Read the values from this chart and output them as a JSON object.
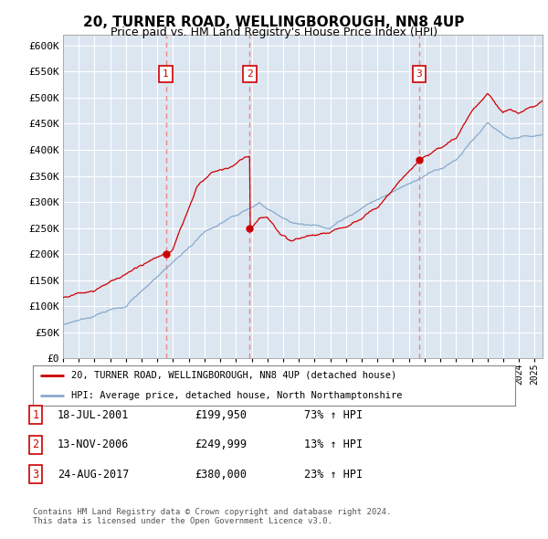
{
  "title": "20, TURNER ROAD, WELLINGBOROUGH, NN8 4UP",
  "subtitle": "Price paid vs. HM Land Registry's House Price Index (HPI)",
  "bg_color": "#dce6f1",
  "plot_bg_color": "#dce6f1",
  "outer_bg_color": "#ffffff",
  "red_line_color": "#cc0000",
  "blue_line_color": "#88aacc",
  "ylim": [
    0,
    620000
  ],
  "yticks": [
    0,
    50000,
    100000,
    150000,
    200000,
    250000,
    300000,
    350000,
    400000,
    450000,
    500000,
    550000,
    600000
  ],
  "ytick_labels": [
    "£0",
    "£50K",
    "£100K",
    "£150K",
    "£200K",
    "£250K",
    "£300K",
    "£350K",
    "£400K",
    "£450K",
    "£500K",
    "£550K",
    "£600K"
  ],
  "xlim_start": 1995.0,
  "xlim_end": 2025.5,
  "sale_dates": [
    2001.54,
    2006.87,
    2017.65
  ],
  "sale_prices": [
    199950,
    249999,
    380000
  ],
  "sale_labels": [
    "1",
    "2",
    "3"
  ],
  "legend_line1": "20, TURNER ROAD, WELLINGBOROUGH, NN8 4UP (detached house)",
  "legend_line2": "HPI: Average price, detached house, North Northamptonshire",
  "table_data": [
    [
      "1",
      "18-JUL-2001",
      "£199,950",
      "73% ↑ HPI"
    ],
    [
      "2",
      "13-NOV-2006",
      "£249,999",
      "13% ↑ HPI"
    ],
    [
      "3",
      "24-AUG-2017",
      "£380,000",
      "23% ↑ HPI"
    ]
  ],
  "footnote": "Contains HM Land Registry data © Crown copyright and database right 2024.\nThis data is licensed under the Open Government Licence v3.0.",
  "grid_color": "#ffffff",
  "dashed_line_color": "#e88888"
}
